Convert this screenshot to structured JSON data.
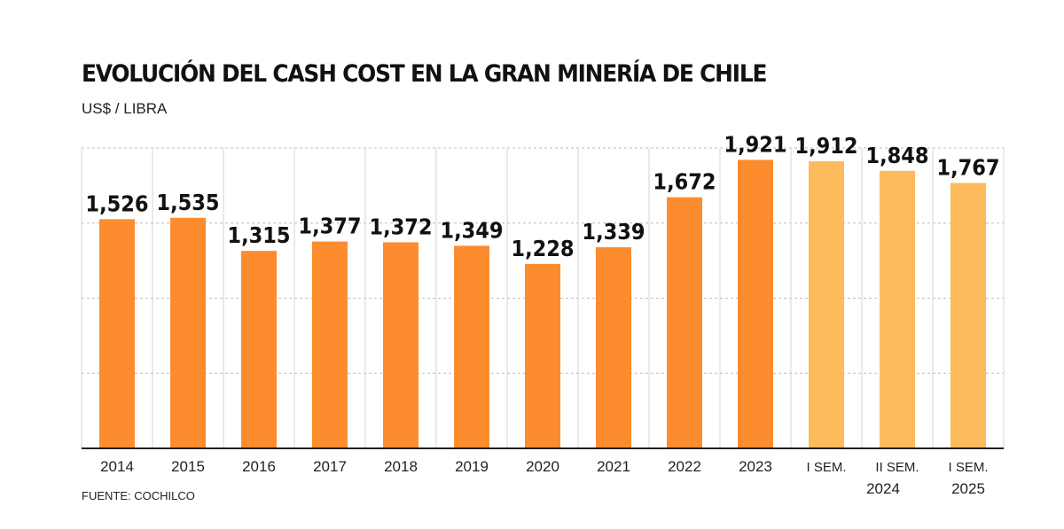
{
  "title": "EVOLUCIÓN DEL CASH COST EN LA GRAN MINERÍA DE CHILE",
  "subtitle": "US$ / LIBRA",
  "source": "FUENTE: COCHILCO",
  "colors": {
    "annual_bar": "#fd8c2f",
    "semester_bar": "#fdbb5c",
    "grid": "#bdbdbd",
    "axis": "#222222"
  },
  "chart_data": {
    "type": "bar",
    "title": "EVOLUCIÓN DEL CASH COST EN LA GRAN MINERÍA DE CHILE",
    "ylabel": "US$ / LIBRA",
    "xlabel": "",
    "ylim": [
      0,
      2
    ],
    "grid": true,
    "categories": [
      "2014",
      "2015",
      "2016",
      "2017",
      "2018",
      "2019",
      "2020",
      "2021",
      "2022",
      "2023",
      "I SEM.",
      "II SEM.",
      "I SEM."
    ],
    "group_labels": [
      "",
      "",
      "",
      "",
      "",
      "",
      "",
      "",
      "",
      "",
      "",
      "2024",
      "2025"
    ],
    "values": [
      1.526,
      1.535,
      1.315,
      1.377,
      1.372,
      1.349,
      1.228,
      1.339,
      1.672,
      1.921,
      1.912,
      1.848,
      1.767
    ],
    "value_labels": [
      "1,526",
      "1,535",
      "1,315",
      "1,377",
      "1,372",
      "1,349",
      "1,228",
      "1,339",
      "1,672",
      "1,921",
      "1,912",
      "1,848",
      "1,767"
    ],
    "bar_kind": [
      "annual",
      "annual",
      "annual",
      "annual",
      "annual",
      "annual",
      "annual",
      "annual",
      "annual",
      "annual",
      "semester",
      "semester",
      "semester"
    ]
  }
}
